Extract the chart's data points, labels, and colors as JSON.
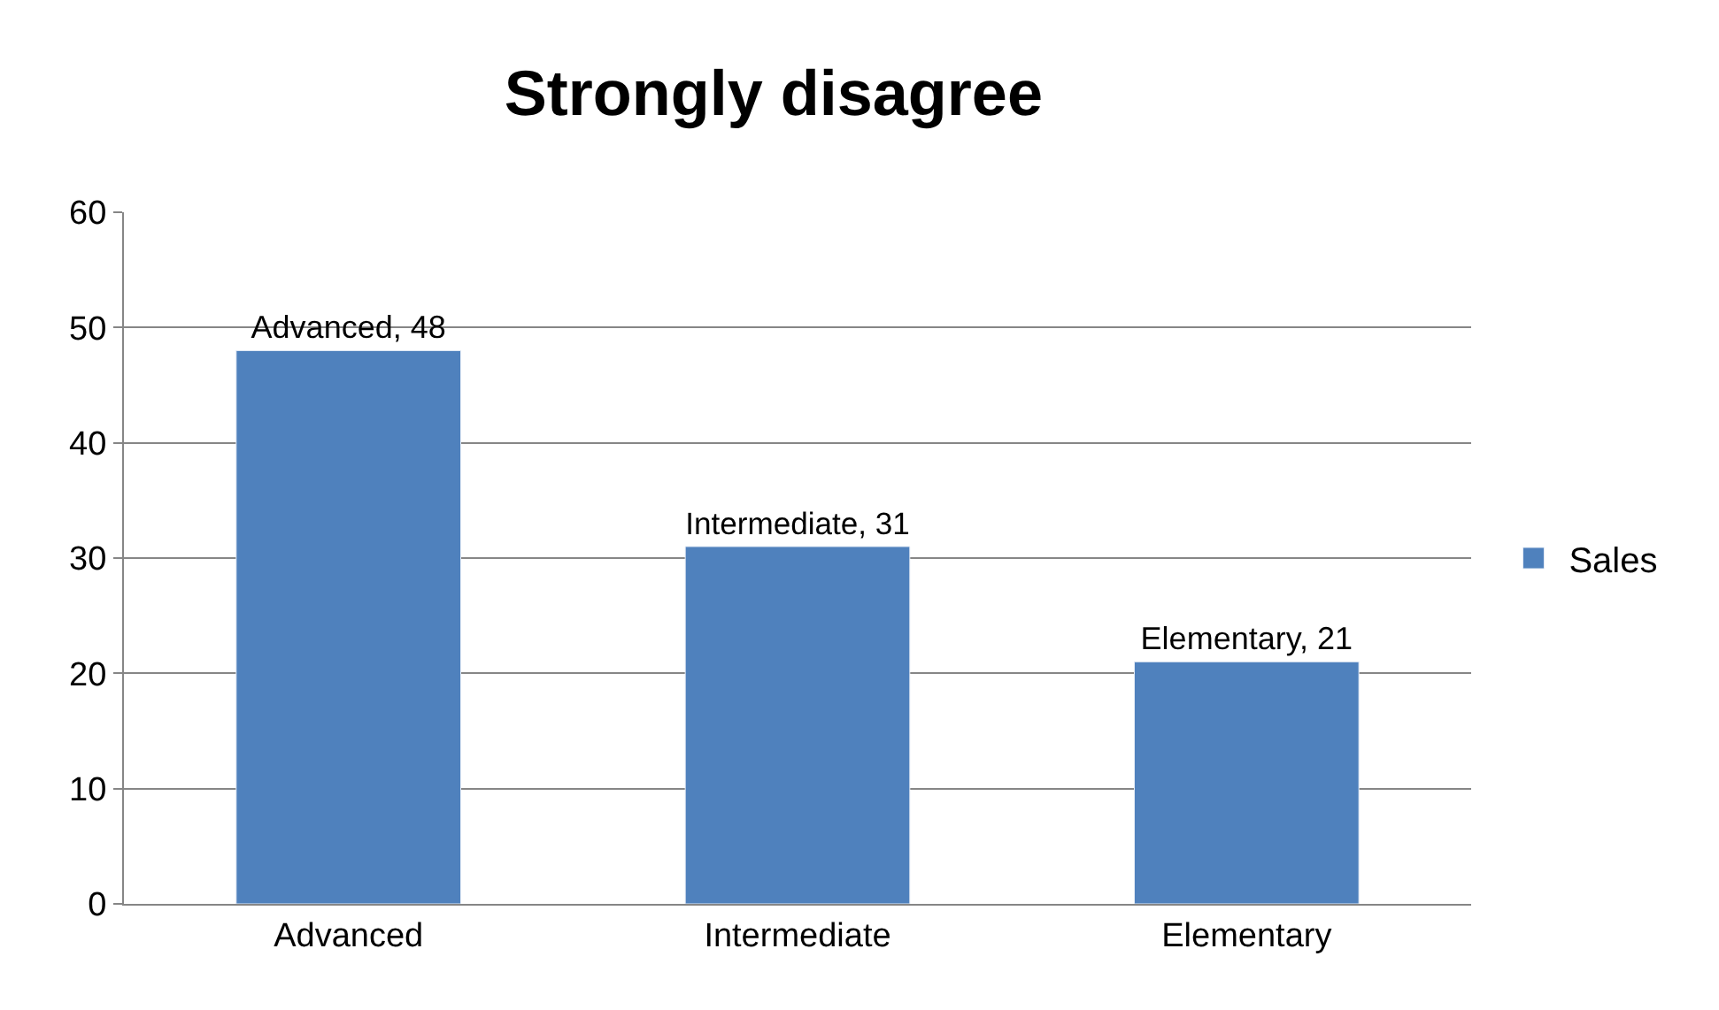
{
  "chart_data": {
    "type": "bar",
    "title": "Strongly disagree",
    "categories": [
      "Advanced",
      "Intermediate",
      "Elementary"
    ],
    "series": [
      {
        "name": "Sales",
        "color": "#4f81bd",
        "values": [
          48,
          31,
          21
        ],
        "value_labels": [
          "Advanced, 48",
          "Intermediate, 31",
          "Elementary, 21"
        ]
      }
    ],
    "ylim": [
      0,
      60
    ],
    "yticks": [
      0,
      10,
      20,
      30,
      40,
      50,
      60
    ],
    "grid": "y",
    "legend": "right"
  }
}
